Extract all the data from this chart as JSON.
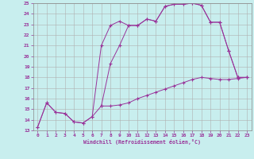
{
  "xlabel": "Windchill (Refroidissement éolien,°C)",
  "xlim": [
    -0.5,
    23.5
  ],
  "ylim": [
    13,
    25
  ],
  "yticks": [
    13,
    14,
    15,
    16,
    17,
    18,
    19,
    20,
    21,
    22,
    23,
    24,
    25
  ],
  "xticks": [
    0,
    1,
    2,
    3,
    4,
    5,
    6,
    7,
    8,
    9,
    10,
    11,
    12,
    13,
    14,
    15,
    16,
    17,
    18,
    19,
    20,
    21,
    22,
    23
  ],
  "background_color": "#c8eeee",
  "grid_color": "#b0b0b0",
  "line_color": "#993399",
  "curve1_x": [
    0,
    1,
    2,
    3,
    4,
    5,
    6,
    7,
    8,
    9,
    10,
    11,
    12,
    13,
    14,
    15,
    16,
    17,
    18,
    19,
    20,
    21,
    22,
    23
  ],
  "curve1_y": [
    13.3,
    15.6,
    14.7,
    14.6,
    13.8,
    13.7,
    14.3,
    21.0,
    22.9,
    23.3,
    22.9,
    22.9,
    23.5,
    23.3,
    24.7,
    24.9,
    24.9,
    25.0,
    24.8,
    23.2,
    23.2,
    20.5,
    18.0,
    18.0
  ],
  "curve2_x": [
    0,
    1,
    2,
    3,
    4,
    5,
    6,
    7,
    8,
    9,
    10,
    11,
    12,
    13,
    14,
    15,
    16,
    17,
    18,
    19,
    20,
    21,
    22,
    23
  ],
  "curve2_y": [
    13.3,
    15.6,
    14.7,
    14.6,
    13.8,
    13.7,
    14.3,
    15.3,
    15.3,
    15.4,
    15.6,
    16.0,
    16.3,
    16.6,
    16.9,
    17.2,
    17.5,
    17.8,
    18.0,
    17.9,
    17.8,
    17.8,
    17.9,
    18.0
  ],
  "curve3_x": [
    7,
    8,
    9,
    10,
    11,
    12,
    13,
    14,
    15,
    16,
    17,
    18,
    19,
    20,
    21,
    22,
    23
  ],
  "curve3_y": [
    15.3,
    19.3,
    21.0,
    22.9,
    22.9,
    23.5,
    23.3,
    24.7,
    24.9,
    24.9,
    25.0,
    24.8,
    23.2,
    23.2,
    20.5,
    18.0,
    18.0
  ]
}
